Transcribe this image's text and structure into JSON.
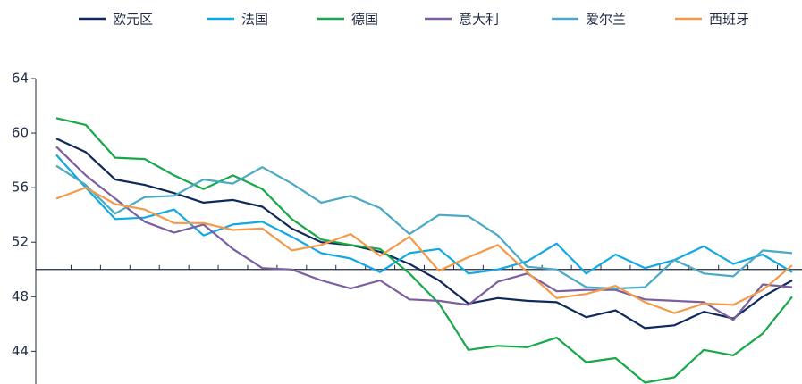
{
  "chart_data": {
    "type": "line",
    "categories": [
      null,
      null,
      null,
      null,
      null,
      null,
      null,
      null,
      null,
      null,
      null,
      null,
      null,
      null,
      null,
      null,
      null,
      null,
      null,
      null,
      null,
      null,
      null,
      null,
      null,
      null
    ],
    "series": [
      {
        "name": "欧元区",
        "color": "#0e2a5c",
        "values": [
          59.6,
          58.6,
          56.6,
          56.2,
          55.6,
          54.9,
          55.1,
          54.6,
          53.0,
          52.0,
          51.8,
          51.3,
          50.4,
          49.2,
          47.5,
          47.9,
          47.7,
          47.6,
          46.5,
          47.0,
          45.7,
          45.9,
          46.9,
          46.4,
          48.0,
          49.2
        ]
      },
      {
        "name": "法国",
        "color": "#12a8e6",
        "values": [
          58.4,
          56.0,
          53.7,
          53.8,
          54.4,
          52.5,
          53.3,
          53.5,
          52.4,
          51.2,
          50.8,
          49.8,
          51.2,
          51.5,
          49.7,
          50.0,
          50.6,
          51.9,
          49.7,
          51.1,
          50.1,
          50.7,
          51.7,
          50.4,
          51.1,
          49.8
        ]
      },
      {
        "name": "德国",
        "color": "#17a84a",
        "values": [
          61.1,
          60.6,
          58.2,
          58.1,
          56.9,
          55.9,
          56.9,
          55.9,
          53.7,
          52.2,
          51.8,
          51.5,
          49.7,
          47.5,
          44.1,
          44.4,
          44.3,
          45.0,
          43.2,
          43.5,
          41.7,
          42.1,
          44.1,
          43.7,
          45.3,
          48.0
        ]
      },
      {
        "name": "意大利",
        "color": "#7b5ea0",
        "values": [
          59.0,
          56.9,
          55.2,
          53.5,
          52.7,
          53.3,
          51.5,
          50.1,
          50.0,
          49.2,
          48.6,
          49.2,
          47.8,
          47.7,
          47.4,
          49.1,
          49.7,
          48.4,
          48.5,
          48.5,
          47.8,
          47.7,
          47.6,
          46.3,
          48.9,
          48.7
        ]
      },
      {
        "name": "爱尔兰",
        "color": "#4aa9c4",
        "values": [
          57.6,
          56.2,
          54.1,
          55.3,
          55.4,
          56.6,
          56.3,
          57.5,
          56.3,
          54.9,
          55.4,
          54.5,
          52.6,
          54.0,
          53.9,
          52.5,
          50.2,
          50.0,
          48.7,
          48.6,
          48.7,
          50.7,
          49.7,
          49.5,
          51.4,
          51.2
        ]
      },
      {
        "name": "西班牙",
        "color": "#f39a4a",
        "values": [
          55.2,
          56.0,
          54.8,
          54.4,
          53.4,
          53.4,
          52.9,
          53.0,
          51.4,
          51.8,
          52.6,
          51.0,
          52.4,
          49.9,
          50.9,
          51.8,
          49.8,
          47.9,
          48.2,
          48.8,
          47.6,
          46.8,
          47.5,
          47.4,
          48.5,
          50.3
        ]
      }
    ],
    "ylim": [
      41.6,
      64
    ],
    "yticks": [
      44,
      48,
      52,
      56,
      60,
      64
    ],
    "x_axis_crosses": 50,
    "legend": "top"
  }
}
